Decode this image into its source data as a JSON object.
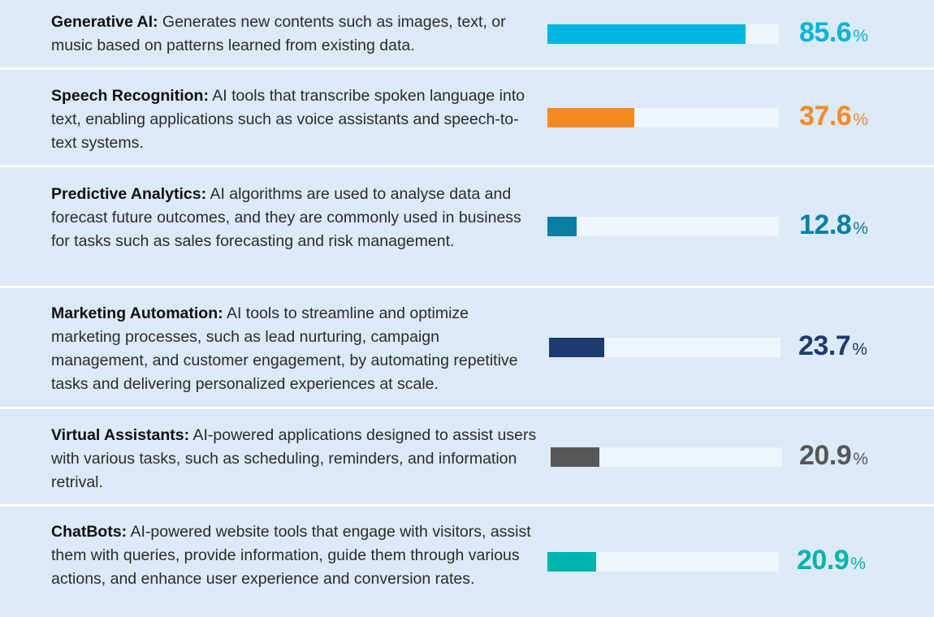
{
  "chart_data": {
    "type": "bar",
    "orientation": "horizontal",
    "value_suffix": "%",
    "xlim": [
      0,
      100
    ],
    "items": [
      {
        "name": "Generative AI:",
        "description": "Generates new contents such as images, text, or music based on patterns learned from existing data.",
        "value": 85.6,
        "value_label": "85.6",
        "color": "#00b5df"
      },
      {
        "name": "Speech Recognition:",
        "description": "AI tools that transcribe spoken language into text, enabling applications such as voice assistants and speech-to-text systems.",
        "value": 37.6,
        "value_label": "37.6",
        "color": "#f58a23"
      },
      {
        "name": "Predictive Analytics:",
        "description": "AI algorithms are used to analyse data and forecast future outcomes, and they are commonly used in business for tasks such as sales forecasting and risk management.",
        "value": 12.8,
        "value_label": "12.8",
        "color": "#0a7fa6"
      },
      {
        "name": "Marketing Automation:",
        "description": "AI tools to streamline and optimize marketing processes, such as lead nurturing, campaign management, and customer engagement, by automating repetitive tasks and delivering personalized experiences at scale.",
        "value": 23.7,
        "value_label": "23.7",
        "color": "#1f3a6e"
      },
      {
        "name": "Virtual Assistants:",
        "description": "AI-powered applications designed to assist users with various tasks, such as scheduling, reminders, and information retrival.",
        "value": 20.9,
        "value_label": "20.9",
        "color": "#555759"
      },
      {
        "name": "ChatBots:",
        "description": "AI-powered website tools that engage with visitors, assist them with queries, provide information, guide them through various actions, and enhance user experience and conversion rates.",
        "value": 20.9,
        "value_label": "20.9",
        "color": "#00b3ae"
      }
    ]
  }
}
